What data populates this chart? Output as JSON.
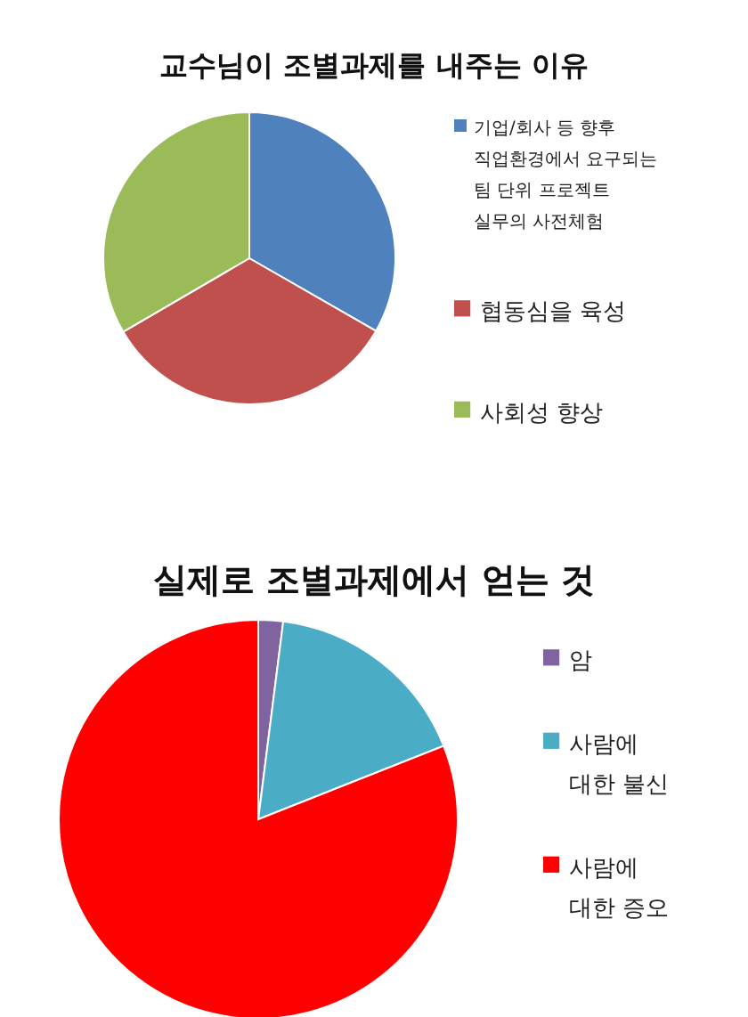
{
  "chart_data": [
    {
      "type": "pie",
      "title": "교수님이 조별과제를 내주는 이유",
      "legend": "right",
      "categories": [
        "기업/회사 등 향후\n직업환경에서 요구되는\n팀 단위 프로젝트\n실무의 사전체험",
        "협동심을 육성",
        "사회성 향상"
      ],
      "values": [
        33.3,
        33.3,
        33.4
      ],
      "colors": [
        "#4f81bd",
        "#c0504d",
        "#9bbb59"
      ]
    },
    {
      "type": "pie",
      "title": "실제로 조별과제에서 얻는 것",
      "legend": "right",
      "categories": [
        "암",
        "사람에\n대한 불신",
        "사람에\n대한 증오"
      ],
      "values": [
        2,
        17,
        81
      ],
      "colors": [
        "#8064a2",
        "#4bacc6",
        "#ff0000"
      ]
    }
  ]
}
